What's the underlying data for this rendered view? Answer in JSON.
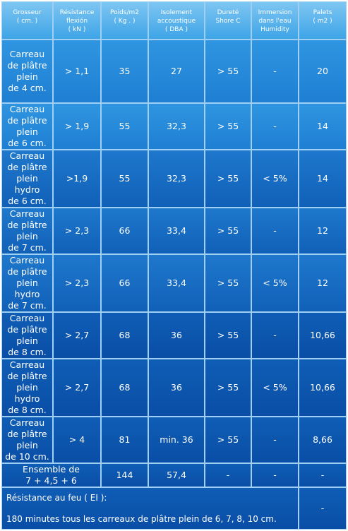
{
  "headers": [
    [
      "Grosseur",
      "( cm. )"
    ],
    [
      "Résistance",
      "flexión",
      "( kN )"
    ],
    [
      "Poids/m2",
      "( Kg . )"
    ],
    [
      "Isolement",
      "accoustique",
      "( DBA )"
    ],
    [
      "Dureté",
      "Shore C"
    ],
    [
      "Immersion",
      "dans l'eau",
      "Humidity"
    ],
    [
      "Palets",
      "( m2 )"
    ]
  ],
  "rows": [
    [
      "Carreau\nde plâtre\nplein\nde 4 cm.",
      "> 1,1",
      "35",
      "27",
      "> 55",
      "-",
      "20"
    ],
    [
      "Carreau\nde plâtre\nplein\nde 6 cm.",
      "> 1,9",
      "55",
      "32,3",
      "> 55",
      "-",
      "14"
    ],
    [
      "Carreau\nde plâtre\nplein\nhydro\nde 6 cm.",
      ">1,9",
      "55",
      "32,3",
      "> 55",
      "< 5%",
      "14"
    ],
    [
      "Carreau\nde plâtre\nplein\nde 7 cm.",
      "> 2,3",
      "66",
      "33,4",
      "> 55",
      "-",
      "12"
    ],
    [
      "Carreau\nde plâtre\nplein\nhydro\nde 7 cm.",
      "> 2,3",
      "66",
      "33,4",
      "> 55",
      "< 5%",
      "12"
    ],
    [
      "Carreau\nde plâtre\nplein\nde 8 cm.",
      "> 2,7",
      "68",
      "36",
      "> 55",
      "-",
      "10,66"
    ],
    [
      "Carreau\nde plâtre\nplein\nhydro\nde 8 cm.",
      "> 2,7",
      "68",
      "36",
      "> 55",
      "< 5%",
      "10,66"
    ],
    [
      "Carreau\nde plâtre\nplein\nde 10 cm.",
      "> 4",
      "81",
      "min. 36",
      "> 55",
      "-",
      "8,66"
    ],
    [
      "Ensemble de\n7 + 4,5 + 6",
      "144",
      "57,4",
      "-",
      "-",
      "-"
    ]
  ],
  "fire": {
    "title": "Résistance au feu ( EI ):",
    "text": "180 minutes tous les carreaux de plâtre plein de 6, 7, 8, 10 cm.",
    "last_cell": "-"
  }
}
